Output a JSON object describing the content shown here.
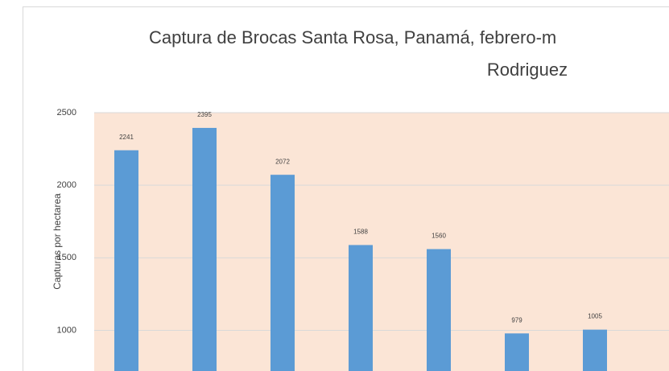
{
  "chart_data": {
    "type": "bar",
    "title": [
      "Captura de Brocas Santa Rosa, Panamá, febrero-m",
      "Rodriguez"
    ],
    "y_label": "Capturas por hectarea",
    "categories": [
      null,
      null,
      null,
      null,
      null,
      null,
      null
    ],
    "values": [
      2241,
      2395,
      2072,
      1588,
      1560,
      979,
      1005
    ],
    "color": "#5b9bd5",
    "plot_background": "#fbe5d6",
    "ylim": [
      720,
      2500
    ],
    "yticks": [
      1000,
      1500,
      2000,
      2500
    ],
    "grid": true
  }
}
